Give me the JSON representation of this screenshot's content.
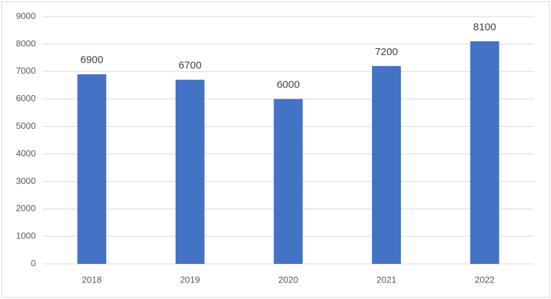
{
  "chart_data": {
    "type": "bar",
    "categories": [
      "2018",
      "2019",
      "2020",
      "2021",
      "2022"
    ],
    "values": [
      6900,
      6700,
      6000,
      7200,
      8100
    ],
    "color": "#4472c4",
    "ylim": [
      0,
      9000
    ],
    "yticks": [
      0,
      1000,
      2000,
      3000,
      4000,
      5000,
      6000,
      7000,
      8000,
      9000
    ],
    "grid": true,
    "data_labels": true
  }
}
